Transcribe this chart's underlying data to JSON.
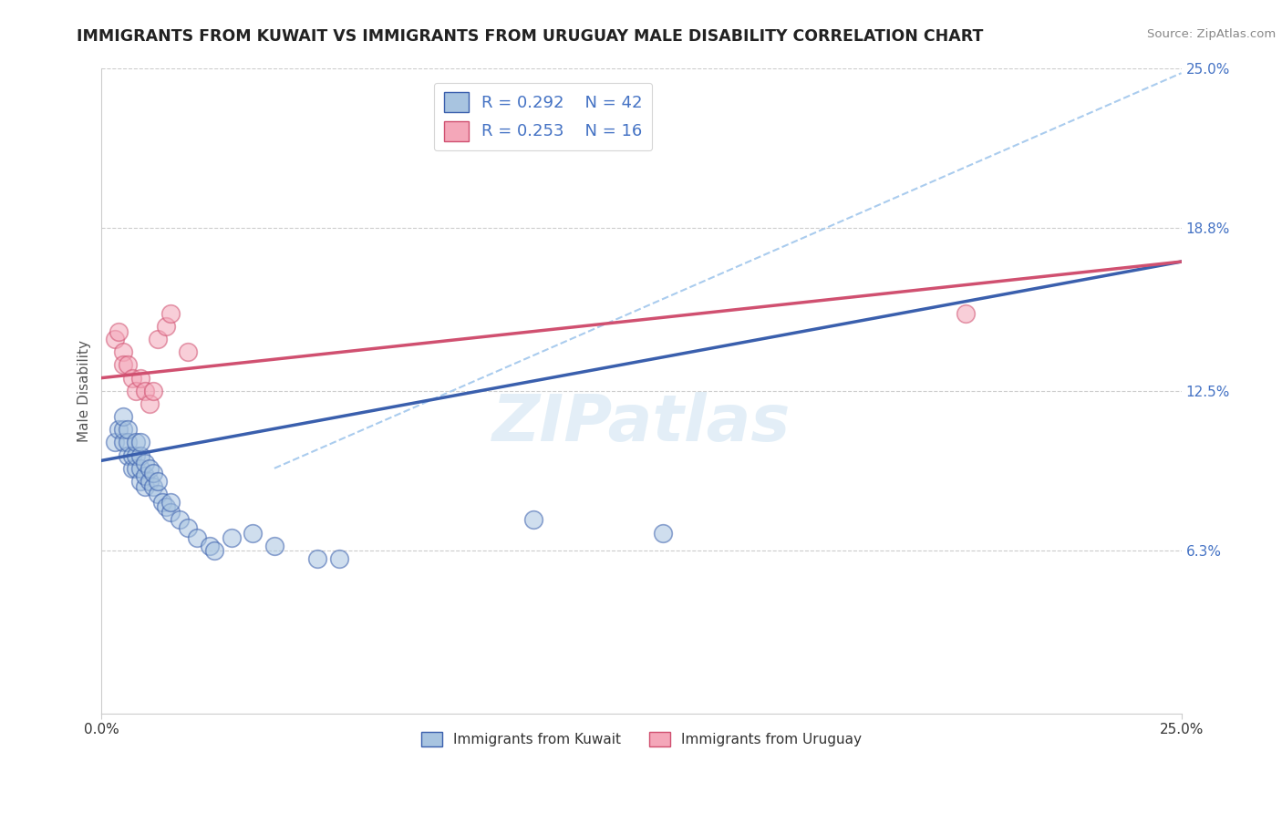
{
  "title": "IMMIGRANTS FROM KUWAIT VS IMMIGRANTS FROM URUGUAY MALE DISABILITY CORRELATION CHART",
  "source": "Source: ZipAtlas.com",
  "ylabel": "Male Disability",
  "xlim": [
    0.0,
    0.25
  ],
  "ylim": [
    0.0,
    0.25
  ],
  "ytick_labels_right": [
    "25.0%",
    "18.8%",
    "12.5%",
    "6.3%"
  ],
  "ytick_values_right": [
    0.25,
    0.188,
    0.125,
    0.063
  ],
  "color_kuwait": "#a8c4e0",
  "color_uruguay": "#f4a7b9",
  "line_color_kuwait": "#3a5fad",
  "line_color_uruguay": "#d05070",
  "line_color_dashed": "#aaccee",
  "background_color": "#ffffff",
  "grid_color": "#cccccc",
  "kuwait_x": [
    0.003,
    0.004,
    0.005,
    0.005,
    0.005,
    0.006,
    0.006,
    0.006,
    0.007,
    0.007,
    0.008,
    0.008,
    0.008,
    0.009,
    0.009,
    0.009,
    0.009,
    0.01,
    0.01,
    0.01,
    0.011,
    0.011,
    0.012,
    0.012,
    0.013,
    0.013,
    0.014,
    0.015,
    0.016,
    0.016,
    0.018,
    0.02,
    0.022,
    0.025,
    0.026,
    0.03,
    0.035,
    0.04,
    0.05,
    0.055,
    0.1,
    0.13
  ],
  "kuwait_y": [
    0.105,
    0.11,
    0.105,
    0.11,
    0.115,
    0.1,
    0.105,
    0.11,
    0.095,
    0.1,
    0.095,
    0.1,
    0.105,
    0.09,
    0.095,
    0.1,
    0.105,
    0.088,
    0.092,
    0.097,
    0.09,
    0.095,
    0.088,
    0.093,
    0.085,
    0.09,
    0.082,
    0.08,
    0.078,
    0.082,
    0.075,
    0.072,
    0.068,
    0.065,
    0.063,
    0.068,
    0.07,
    0.065,
    0.06,
    0.06,
    0.075,
    0.07
  ],
  "uruguay_x": [
    0.003,
    0.004,
    0.005,
    0.005,
    0.006,
    0.007,
    0.008,
    0.009,
    0.01,
    0.011,
    0.012,
    0.013,
    0.015,
    0.016,
    0.02,
    0.2
  ],
  "uruguay_y": [
    0.145,
    0.148,
    0.14,
    0.135,
    0.135,
    0.13,
    0.125,
    0.13,
    0.125,
    0.12,
    0.125,
    0.145,
    0.15,
    0.155,
    0.14,
    0.155
  ],
  "kuwait_line_x0": 0.0,
  "kuwait_line_y0": 0.098,
  "kuwait_line_x1": 0.25,
  "kuwait_line_y1": 0.175,
  "uruguay_line_x0": 0.0,
  "uruguay_line_y0": 0.13,
  "uruguay_line_x1": 0.25,
  "uruguay_line_y1": 0.175,
  "dash_line_x0": 0.04,
  "dash_line_y0": 0.095,
  "dash_line_x1": 0.25,
  "dash_line_y1": 0.248
}
